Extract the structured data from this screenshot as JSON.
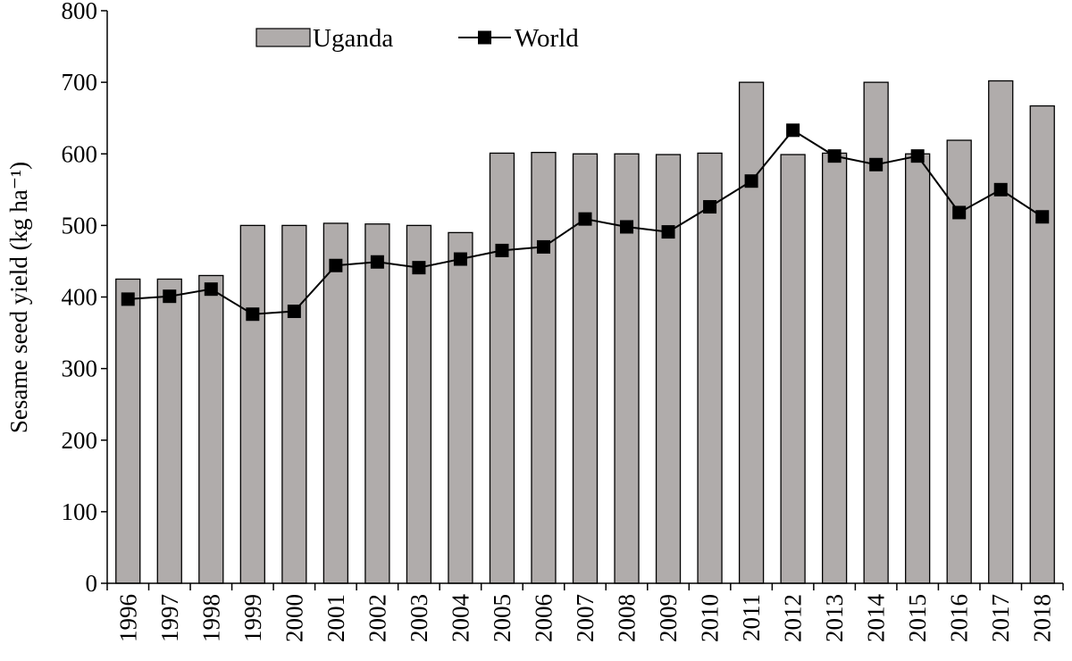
{
  "chart_data": {
    "type": "bar",
    "title": "",
    "xlabel": "",
    "ylabel": "Sesame seed yield (kg ha⁻¹)",
    "ylim": [
      0,
      800
    ],
    "yticks": [
      0,
      100,
      200,
      300,
      400,
      500,
      600,
      700,
      800
    ],
    "grid": false,
    "legend_position": "top-center",
    "categories": [
      "1996",
      "1997",
      "1998",
      "1999",
      "2000",
      "2001",
      "2002",
      "2003",
      "2004",
      "2005",
      "2006",
      "2007",
      "2008",
      "2009",
      "2010",
      "2011",
      "2012",
      "2013",
      "2014",
      "2015",
      "2016",
      "2017",
      "2018"
    ],
    "series": [
      {
        "name": "Uganda",
        "type": "bar",
        "color": "#b0acab",
        "values": [
          425,
          425,
          430,
          500,
          500,
          503,
          502,
          500,
          490,
          601,
          602,
          600,
          600,
          599,
          601,
          700,
          599,
          601,
          700,
          600,
          619,
          702,
          667
        ]
      },
      {
        "name": "World",
        "type": "line",
        "marker": "square",
        "color": "#000000",
        "values": [
          397,
          401,
          411,
          376,
          380,
          444,
          449,
          441,
          453,
          465,
          470,
          509,
          498,
          491,
          526,
          562,
          633,
          597,
          585,
          597,
          518,
          550,
          512
        ]
      }
    ]
  }
}
